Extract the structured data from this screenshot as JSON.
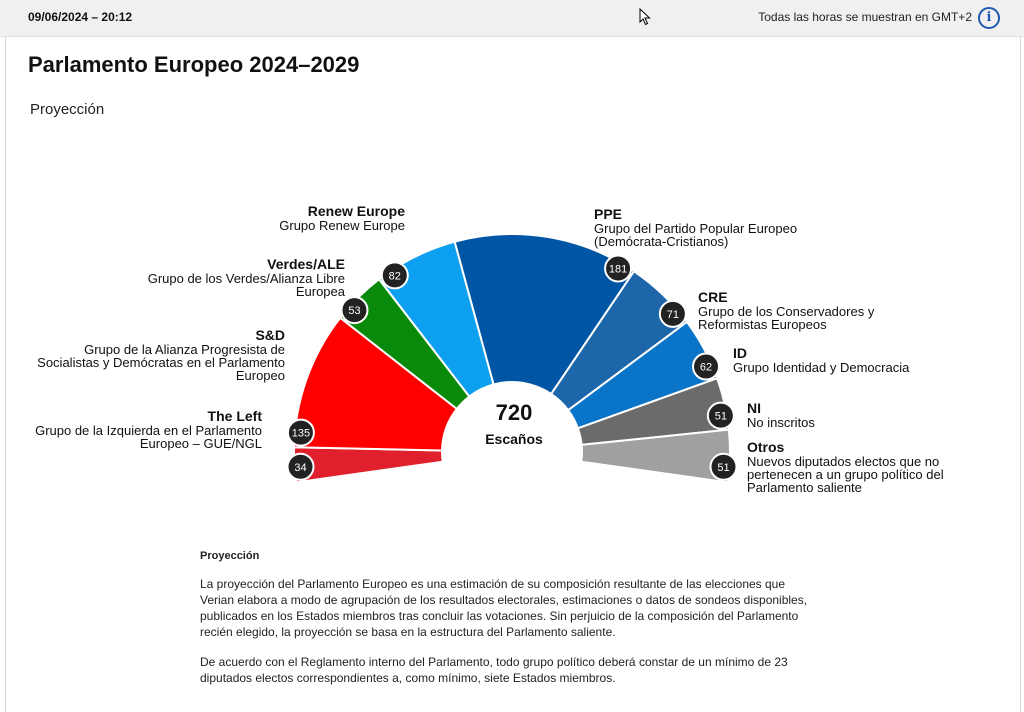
{
  "header": {
    "datetime": "09/06/2024 – 20:12",
    "tz_note": "Todas las horas se muestran en GMT+2",
    "info_icon": "info-icon"
  },
  "title": "Parlamento Europeo 2024–2029",
  "subtitle": "Proyección",
  "center": {
    "total": "720",
    "label": "Escaños"
  },
  "chart_data": {
    "type": "pie",
    "subtype": "hemicycle",
    "total": 720,
    "series": [
      {
        "name": "The Left",
        "description": "Grupo de la Izquierda en el Parlamento Europeo – GUE/NGL",
        "value": 34,
        "color": "#e0202c"
      },
      {
        "name": "S&D",
        "description": "Grupo de la Alianza Progresista de Socialistas y Demócratas en el Parlamento Europeo",
        "value": 135,
        "color": "#ff0000"
      },
      {
        "name": "Verdes/ALE",
        "description": "Grupo de los Verdes/Alianza Libre Europea",
        "value": 53,
        "color": "#0a8a0a"
      },
      {
        "name": "Renew Europe",
        "description": "Grupo Renew Europe",
        "value": 82,
        "color": "#0ea0f0"
      },
      {
        "name": "PPE",
        "description": "Grupo del Partido Popular Europeo (Demócrata-Cristianos)",
        "value": 181,
        "color": "#0055a4"
      },
      {
        "name": "CRE",
        "description": "Grupo de los Conservadores y Reformistas Europeos",
        "value": 71,
        "color": "#1e66aa"
      },
      {
        "name": "ID",
        "description": "Grupo Identidad y Democracia",
        "value": 62,
        "color": "#0a74c8"
      },
      {
        "name": "NI",
        "description": "No inscritos",
        "value": 51,
        "color": "#6b6b6b"
      },
      {
        "name": "Otros",
        "description": "Nuevos diputados electos que no pertenecen a un grupo político del Parlamento saliente",
        "value": 51,
        "color": "#a0a0a0"
      }
    ]
  },
  "notes": {
    "heading": "Proyección",
    "paragraph1": "La proyección del Parlamento Europeo es una estimación de su composición resultante de las elecciones que Verian elabora a modo de agrupación de los resultados electorales, estimaciones o datos de sondeos disponibles, publicados en los Estados miembros tras concluir las votaciones. Sin perjuicio de la composición del Parlamento recién elegido, la proyección se basa en la estructura del Parlamento saliente.",
    "paragraph2": "De acuerdo con el Reglamento interno del Parlamento, todo grupo político deberá constar de un mínimo de 23 diputados electos correspondientes a, como mínimo, siete Estados miembros."
  }
}
